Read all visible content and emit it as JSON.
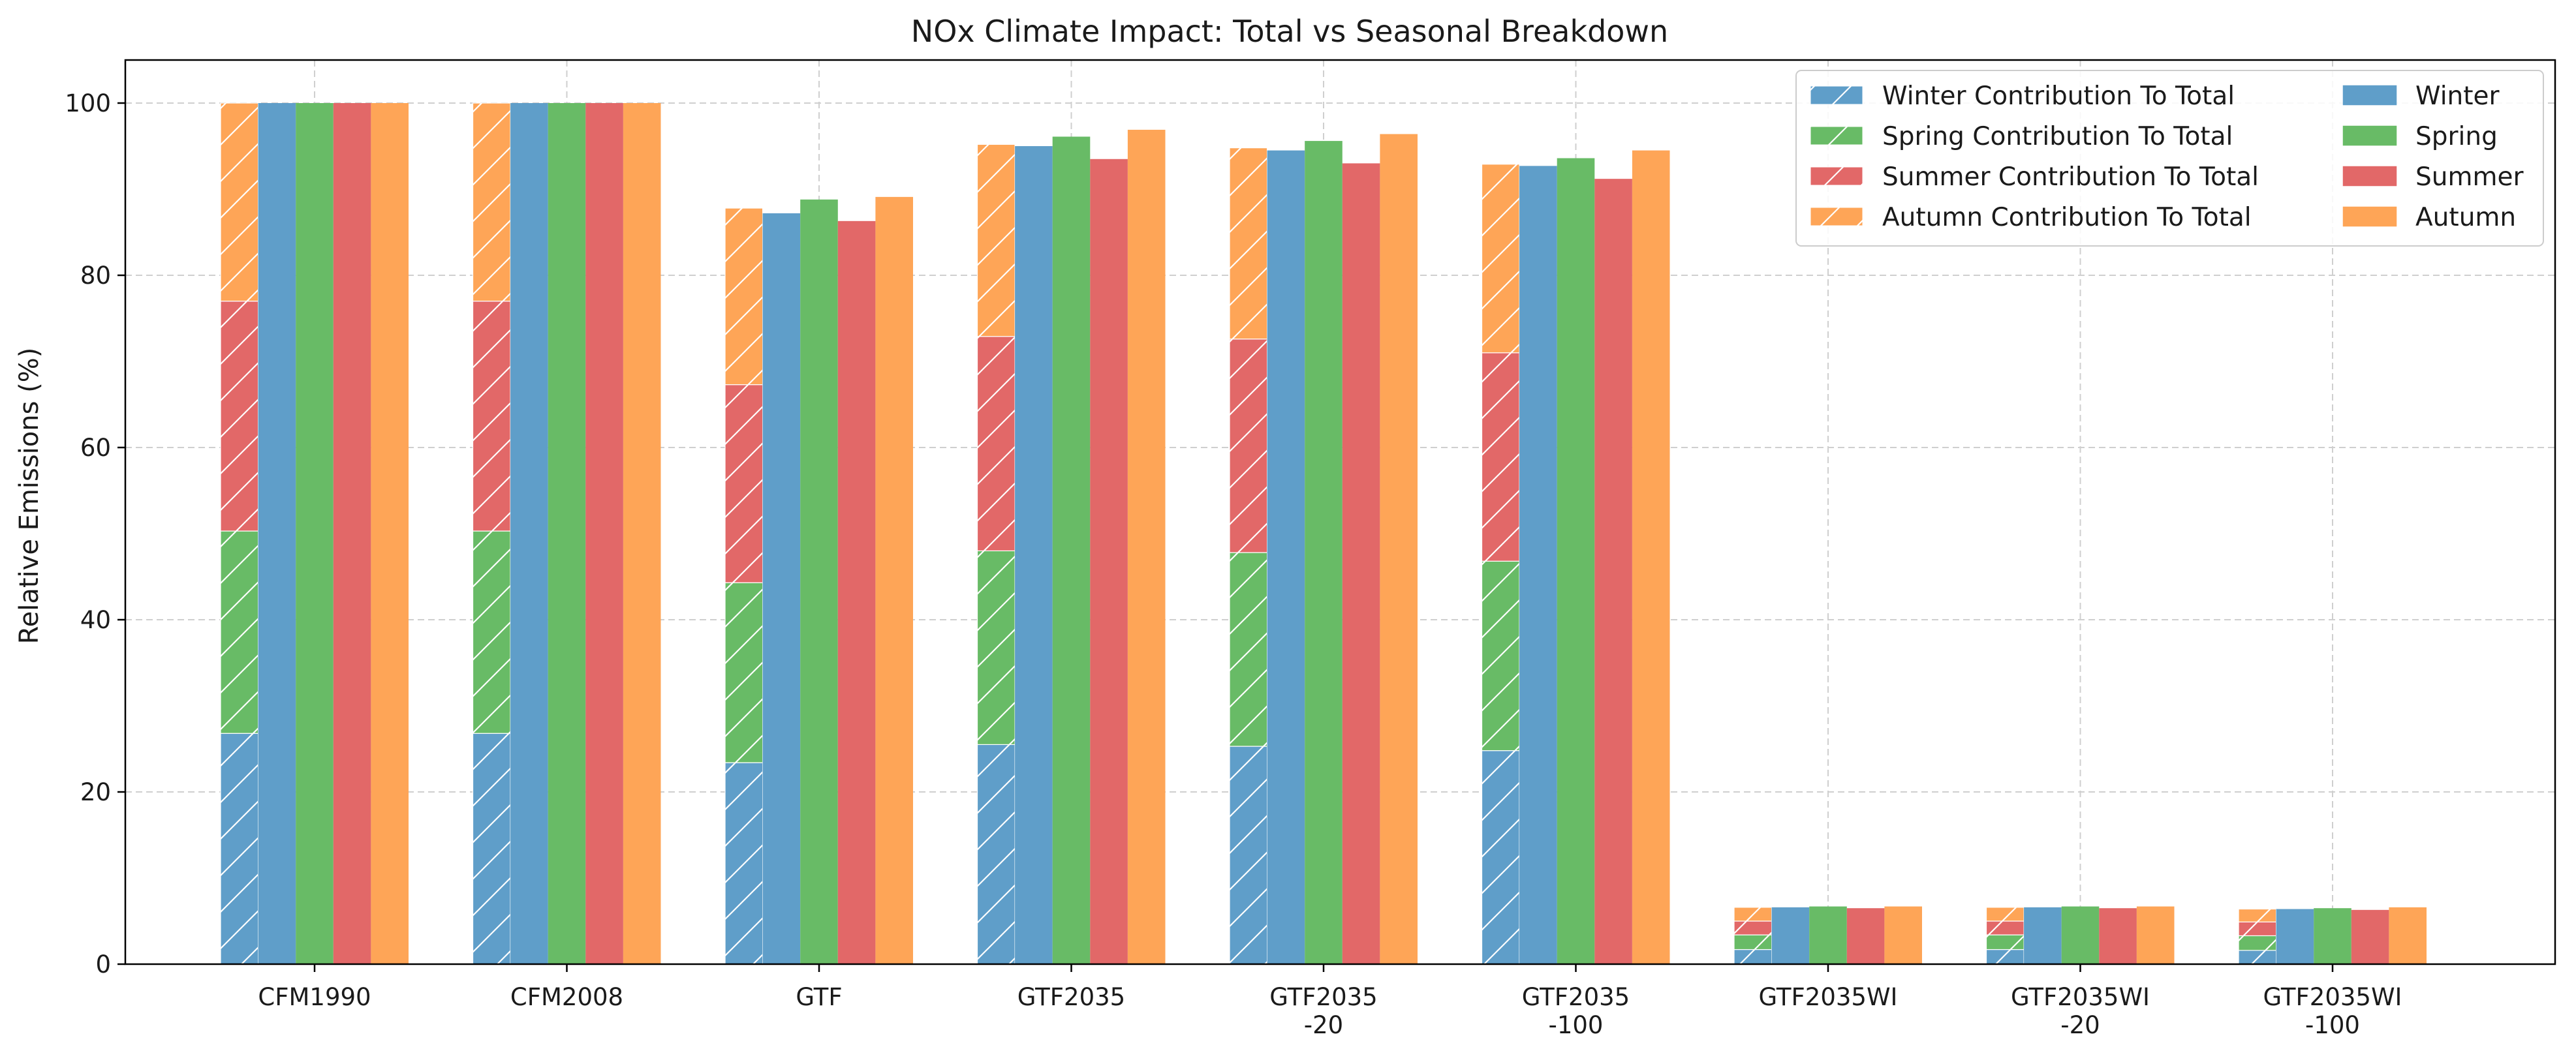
{
  "chart_data": {
    "type": "bar",
    "title": "NOx Climate Impact: Total vs Seasonal Breakdown",
    "xlabel": "",
    "ylabel": "Relative Emissions (%)",
    "ylim": [
      0,
      105
    ],
    "yticks": [
      0,
      20,
      40,
      60,
      80,
      100
    ],
    "grid": true,
    "legend_position": "top-right",
    "categories": [
      [
        "CFM1990"
      ],
      [
        "CFM2008"
      ],
      [
        "GTF"
      ],
      [
        "GTF2035"
      ],
      [
        "GTF2035",
        "-20"
      ],
      [
        "GTF2035",
        "-100"
      ],
      [
        "GTF2035WI"
      ],
      [
        "GTF2035WI",
        "-20"
      ],
      [
        "GTF2035WI",
        "-100"
      ]
    ],
    "stacked_series": [
      {
        "name": "Winter Contribution To Total",
        "color": "#5f9ec9",
        "values": [
          26.8,
          26.8,
          23.4,
          25.5,
          25.3,
          24.8,
          1.7,
          1.7,
          1.6
        ]
      },
      {
        "name": "Spring Contribution To Total",
        "color": "#68bb66",
        "values": [
          23.5,
          23.5,
          20.9,
          22.5,
          22.5,
          22.0,
          1.7,
          1.7,
          1.7
        ]
      },
      {
        "name": "Summer Contribution To Total",
        "color": "#e26868",
        "values": [
          26.7,
          26.7,
          23.0,
          24.9,
          24.8,
          24.2,
          1.6,
          1.6,
          1.6
        ]
      },
      {
        "name": "Autumn Contribution To Total",
        "color": "#fea557",
        "values": [
          23.0,
          23.0,
          20.5,
          22.3,
          22.2,
          21.9,
          1.6,
          1.6,
          1.5
        ]
      }
    ],
    "series": [
      {
        "name": "Winter",
        "color": "#5f9ec9",
        "values": [
          100,
          100,
          87.2,
          95.0,
          94.5,
          92.7,
          6.6,
          6.6,
          6.4
        ]
      },
      {
        "name": "Spring",
        "color": "#68bb66",
        "values": [
          100,
          100,
          88.8,
          96.1,
          95.6,
          93.6,
          6.7,
          6.7,
          6.5
        ]
      },
      {
        "name": "Summer",
        "color": "#e26868",
        "values": [
          100,
          100,
          86.3,
          93.5,
          93.0,
          91.2,
          6.5,
          6.5,
          6.3
        ]
      },
      {
        "name": "Autumn",
        "color": "#fea557",
        "values": [
          100,
          100,
          89.1,
          96.9,
          96.4,
          94.5,
          6.7,
          6.7,
          6.6
        ]
      }
    ]
  }
}
